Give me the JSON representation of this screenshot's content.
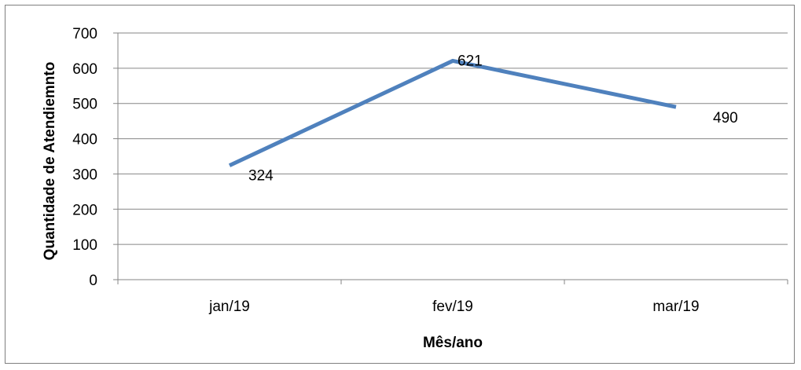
{
  "chart_data": {
    "type": "line",
    "categories": [
      "jan/19",
      "fev/19",
      "mar/19"
    ],
    "series": [
      {
        "values": [
          324,
          621,
          490
        ]
      }
    ],
    "data_labels": [
      "324",
      "621",
      "490"
    ],
    "title": "",
    "xlabel": "Mês/ano",
    "ylabel": "Quantidade de Atendiemnto",
    "ylim": [
      0,
      700
    ],
    "yticks": [
      "0",
      "100",
      "200",
      "300",
      "400",
      "500",
      "600",
      "700"
    ],
    "grid": true,
    "legend": "none",
    "line_color": "#4f81bd",
    "grid_color": "#868686"
  }
}
